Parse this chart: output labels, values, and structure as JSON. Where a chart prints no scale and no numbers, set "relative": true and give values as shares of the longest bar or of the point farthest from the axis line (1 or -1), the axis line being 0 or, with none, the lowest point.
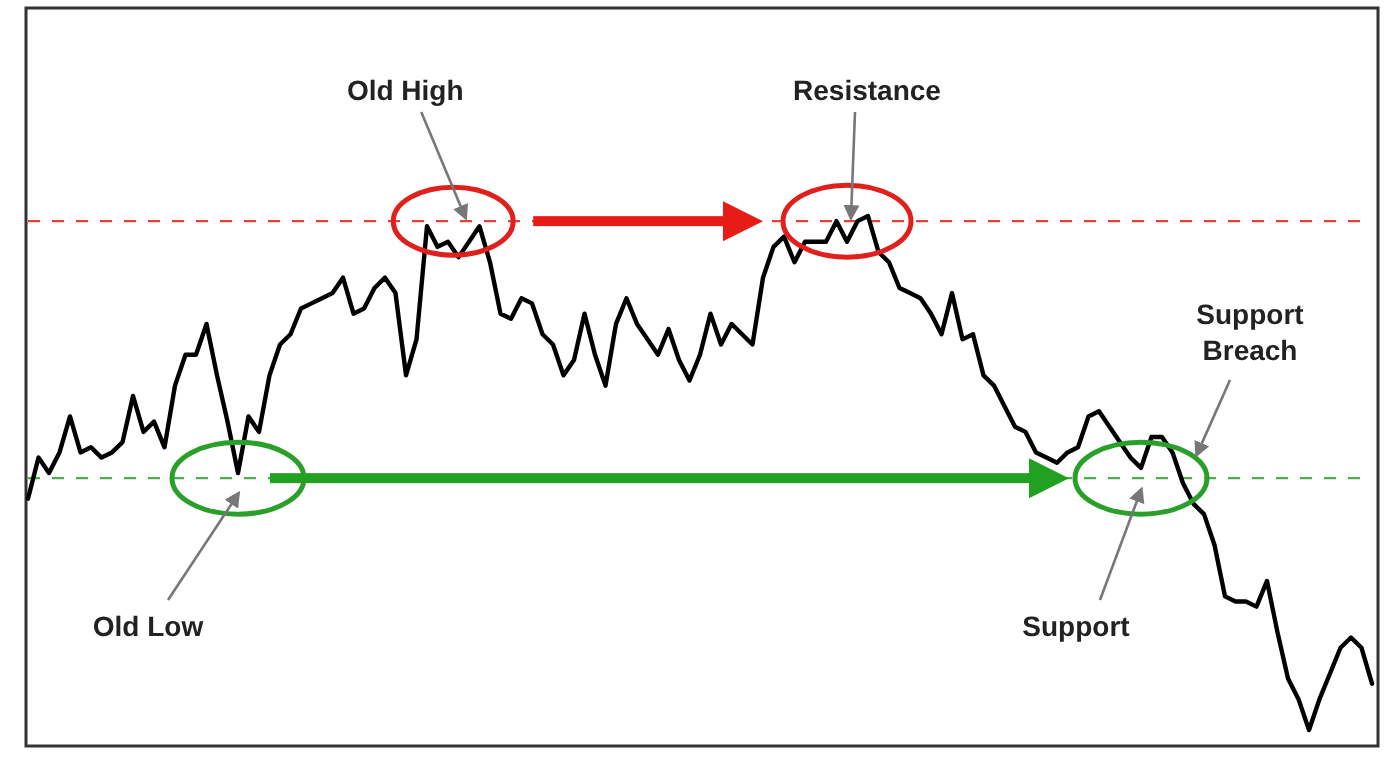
{
  "chart_data": {
    "type": "line",
    "relative": true,
    "categories": [
      null,
      null,
      null,
      null,
      null,
      null,
      null,
      null,
      null,
      null,
      null,
      null,
      null,
      null,
      null,
      null,
      null,
      null,
      null,
      null,
      null,
      null,
      null,
      null,
      null,
      null,
      null,
      null,
      null,
      null,
      null,
      null,
      null,
      null,
      null,
      null,
      null,
      null,
      null,
      null,
      null,
      null,
      null,
      null,
      null,
      null,
      null,
      null,
      null,
      null,
      null,
      null,
      null,
      null,
      null,
      null,
      null,
      null,
      null,
      null,
      null,
      null,
      null,
      null,
      null,
      null,
      null,
      null,
      null,
      null,
      null,
      null,
      null,
      null,
      null,
      null,
      null,
      null,
      null,
      null,
      null,
      null,
      null,
      null,
      null,
      null,
      null,
      null,
      null,
      null,
      null,
      null,
      null,
      null,
      null,
      null,
      null,
      null,
      null,
      null,
      null,
      null,
      null,
      null,
      null,
      null,
      null,
      null,
      null,
      null,
      null,
      null,
      null,
      null,
      null,
      null,
      null,
      null,
      null,
      null,
      null,
      null,
      null,
      null,
      null,
      null,
      null,
      null,
      null
    ],
    "series": [
      {
        "color": "#000000",
        "values": [
          0.45,
          0.53,
          0.5,
          0.54,
          0.61,
          0.54,
          0.55,
          0.53,
          0.54,
          0.56,
          0.65,
          0.58,
          0.6,
          0.55,
          0.67,
          0.73,
          0.73,
          0.79,
          0.69,
          0.6,
          0.5,
          0.61,
          0.58,
          0.69,
          0.75,
          0.77,
          0.82,
          0.83,
          0.84,
          0.85,
          0.88,
          0.81,
          0.82,
          0.86,
          0.88,
          0.85,
          0.69,
          0.76,
          0.98,
          0.94,
          0.95,
          0.92,
          0.95,
          0.98,
          0.91,
          0.81,
          0.8,
          0.84,
          0.83,
          0.77,
          0.75,
          0.69,
          0.72,
          0.81,
          0.73,
          0.67,
          0.79,
          0.84,
          0.79,
          0.76,
          0.73,
          0.78,
          0.72,
          0.68,
          0.73,
          0.81,
          0.75,
          0.79,
          0.77,
          0.75,
          0.88,
          0.94,
          0.96,
          0.91,
          0.95,
          0.95,
          0.95,
          0.99,
          0.95,
          0.99,
          1,
          0.93,
          0.91,
          0.86,
          0.85,
          0.84,
          0.81,
          0.77,
          0.85,
          0.76,
          0.77,
          0.69,
          0.67,
          0.63,
          0.59,
          0.58,
          0.54,
          0.53,
          0.52,
          0.54,
          0.55,
          0.61,
          0.62,
          0.59,
          0.56,
          0.53,
          0.51,
          0.57,
          0.57,
          0.54,
          0.48,
          0.44,
          0.42,
          0.36,
          0.26,
          0.25,
          0.25,
          0.24,
          0.29,
          0.19,
          0.1,
          0.06,
          0,
          0.06,
          0.11,
          0.16,
          0.18,
          0.16,
          0.09
        ]
      }
    ],
    "ref_lines": [
      {
        "axis": "y",
        "value": 0.99,
        "color": "#e8413c",
        "line_style": "dashed"
      },
      {
        "axis": "y",
        "value": 0.49,
        "color": "#4caf50",
        "line_style": "dashed"
      }
    ],
    "annotations": [
      "Old High",
      "Resistance",
      "Support Breach",
      "Old Low",
      "Support"
    ]
  }
}
